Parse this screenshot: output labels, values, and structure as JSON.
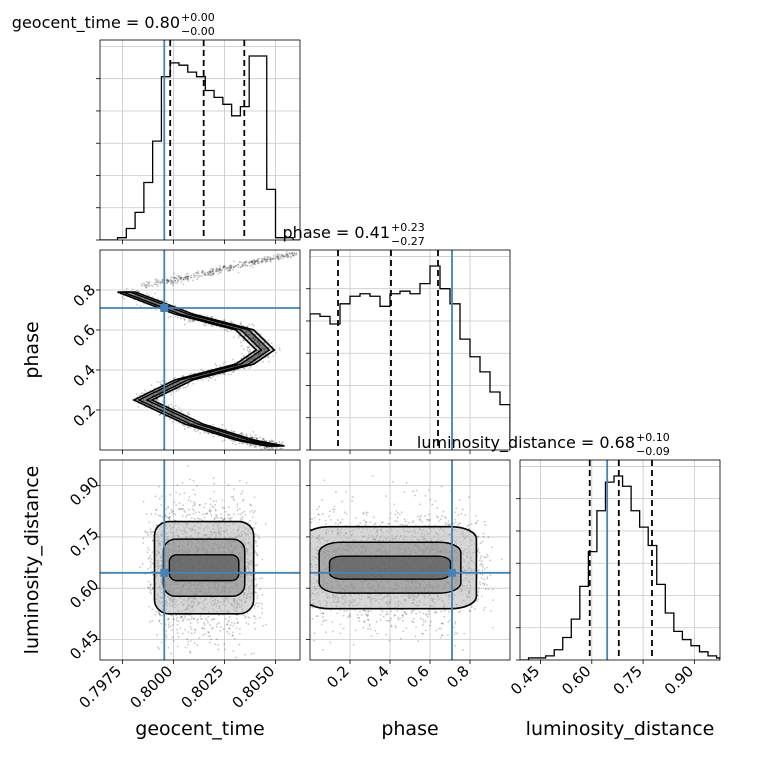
{
  "chart_data": {
    "type": "corner",
    "grid": true,
    "parameters": [
      "geocent_time",
      "phase",
      "luminosity_distance"
    ],
    "truths": {
      "geocent_time": 0.79955,
      "phase": 0.71,
      "luminosity_distance": 0.645
    },
    "colors": {
      "truth": "#4682b4",
      "hist": "#000000",
      "grid": "#c8c8c8"
    },
    "titles": [
      {
        "param": "geocent_time",
        "text": "geocent_time = 0.80",
        "plus": "+0.00",
        "minus": "−0.00"
      },
      {
        "param": "phase",
        "text": "phase = 0.41",
        "plus": "+0.23",
        "minus": "−0.27"
      },
      {
        "param": "luminosity_distance",
        "text": "luminosity_distance = 0.68",
        "plus": "+0.10",
        "minus": "−0.09"
      }
    ],
    "axes": {
      "geocent_time": {
        "label": "geocent_time",
        "lim": [
          0.7964,
          0.8062
        ],
        "ticks": [
          0.7975,
          0.8,
          0.8025,
          0.805
        ],
        "tick_labels": [
          "0.7975",
          "0.8000",
          "0.8025",
          "0.8050"
        ]
      },
      "phase": {
        "label": "phase",
        "lim": [
          0.0,
          1.0
        ],
        "ticks": [
          0.2,
          0.4,
          0.6,
          0.8
        ],
        "tick_labels": [
          "0.2",
          "0.4",
          "0.6",
          "0.8"
        ]
      },
      "luminosity_distance": {
        "label": "luminosity_distance",
        "lim": [
          0.39,
          0.975
        ],
        "ticks": [
          0.45,
          0.6,
          0.75,
          0.9
        ],
        "tick_labels": [
          "0.45",
          "0.60",
          "0.75",
          "0.90"
        ]
      }
    },
    "histograms": [
      {
        "param": "geocent_time",
        "edges": [
          0.7964,
          0.79683,
          0.79726,
          0.79769,
          0.79812,
          0.79855,
          0.79898,
          0.79941,
          0.79984,
          0.80027,
          0.8007,
          0.80113,
          0.80156,
          0.80199,
          0.80242,
          0.80285,
          0.80328,
          0.80371,
          0.80414,
          0.80457,
          0.805,
          0.80543,
          0.80586,
          0.80629
        ],
        "counts": [
          0,
          0,
          0.01,
          0.05,
          0.12,
          0.25,
          0.43,
          0.71,
          0.77,
          0.76,
          0.73,
          0.71,
          0.65,
          0.62,
          0.59,
          0.54,
          0.58,
          0.8,
          0.8,
          0.22,
          0.01,
          0.01,
          0
        ],
        "quantiles": [
          0.79984,
          0.80148,
          0.80347
        ]
      },
      {
        "param": "phase",
        "edges": [
          0.0,
          0.05,
          0.1,
          0.15,
          0.2,
          0.25,
          0.3,
          0.35,
          0.4,
          0.45,
          0.5,
          0.55,
          0.6,
          0.65,
          0.7,
          0.75,
          0.8,
          0.85,
          0.9,
          0.95,
          1.0
        ],
        "counts": [
          0.54,
          0.53,
          0.5,
          0.58,
          0.61,
          0.62,
          0.61,
          0.57,
          0.62,
          0.63,
          0.62,
          0.66,
          0.73,
          0.64,
          0.58,
          0.44,
          0.37,
          0.31,
          0.23,
          0.18
        ],
        "quantiles": [
          0.14,
          0.405,
          0.64
        ]
      },
      {
        "param": "luminosity_distance",
        "edges": [
          0.39,
          0.415,
          0.44,
          0.465,
          0.49,
          0.515,
          0.54,
          0.565,
          0.59,
          0.615,
          0.64,
          0.665,
          0.69,
          0.715,
          0.74,
          0.765,
          0.79,
          0.815,
          0.84,
          0.865,
          0.89,
          0.915,
          0.94,
          0.965,
          0.975
        ],
        "counts": [
          0,
          0.01,
          0.01,
          0.02,
          0.05,
          0.11,
          0.2,
          0.36,
          0.53,
          0.73,
          0.87,
          0.9,
          0.85,
          0.73,
          0.65,
          0.56,
          0.37,
          0.23,
          0.14,
          0.1,
          0.07,
          0.04,
          0.02,
          0.01
        ],
        "quantiles": [
          0.594,
          0.679,
          0.776
        ]
      }
    ],
    "pairs": [
      {
        "x": "geocent_time",
        "y": "phase",
        "shape": "S-curve",
        "description_points": [
          [
            0.7977,
            0.79
          ],
          [
            0.8005,
            0.68
          ],
          [
            0.8035,
            0.6
          ],
          [
            0.8045,
            0.5
          ],
          [
            0.8035,
            0.43
          ],
          [
            0.8005,
            0.35
          ],
          [
            0.7985,
            0.25
          ],
          [
            0.801,
            0.13
          ],
          [
            0.8035,
            0.05
          ],
          [
            0.805,
            0.02
          ]
        ],
        "tail_points": [
          [
            0.7985,
            0.82
          ],
          [
            0.8,
            0.85
          ],
          [
            0.8015,
            0.88
          ],
          [
            0.803,
            0.92
          ],
          [
            0.8045,
            0.95
          ],
          [
            0.806,
            0.98
          ]
        ]
      },
      {
        "x": "geocent_time",
        "y": "luminosity_distance",
        "center": [
          0.8015,
          0.66
        ],
        "spread": [
          0.0018,
          0.09
        ]
      },
      {
        "x": "phase",
        "y": "luminosity_distance",
        "center": [
          0.4,
          0.66
        ],
        "spread": [
          0.32,
          0.08
        ]
      }
    ]
  }
}
